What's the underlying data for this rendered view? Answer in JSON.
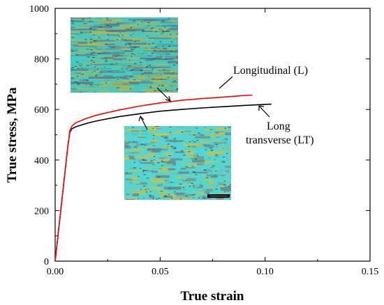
{
  "chart_data": {
    "type": "line",
    "xlabel": "True strain",
    "ylabel": "True stress, MPa",
    "xlim": [
      0,
      0.15
    ],
    "ylim": [
      0,
      1000
    ],
    "x_ticks": [
      "0.00",
      "0.05",
      "0.10",
      "0.15"
    ],
    "y_ticks": [
      "0",
      "200",
      "400",
      "600",
      "800",
      "1000"
    ],
    "series": [
      {
        "name": "Longitudinal (L)",
        "color": "#ff0000",
        "x": [
          0,
          0.002,
          0.004,
          0.006,
          0.007,
          0.008,
          0.01,
          0.015,
          0.02,
          0.03,
          0.04,
          0.05,
          0.06,
          0.07,
          0.08,
          0.09,
          0.094
        ],
        "y": [
          0,
          150,
          300,
          450,
          515,
          535,
          548,
          565,
          578,
          597,
          613,
          626,
          636,
          643,
          649,
          655,
          657
        ]
      },
      {
        "name": "Long transverse (LT)",
        "color": "#000000",
        "x": [
          0,
          0.002,
          0.004,
          0.006,
          0.007,
          0.008,
          0.01,
          0.015,
          0.02,
          0.03,
          0.04,
          0.05,
          0.06,
          0.07,
          0.08,
          0.09,
          0.1,
          0.103
        ],
        "y": [
          0,
          150,
          300,
          450,
          510,
          524,
          532,
          545,
          555,
          571,
          583,
          593,
          600,
          606,
          611,
          616,
          620,
          621
        ]
      }
    ],
    "annotations": [
      {
        "text": "Longitudinal (L)"
      },
      {
        "text": "Long"
      },
      {
        "text": "transverse (LT)"
      }
    ],
    "insets": [
      {
        "name": "longitudinal-micrograph",
        "colors": [
          "#45c8c0",
          "#b9b54a",
          "#5a7a8a"
        ]
      },
      {
        "name": "transverse-micrograph",
        "colors": [
          "#55d5d2",
          "#c8c24a",
          "#6a8a8a"
        ]
      }
    ],
    "legend": "none",
    "grid": false
  }
}
